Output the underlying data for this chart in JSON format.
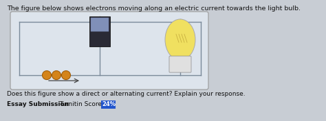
{
  "background_color": "#c8cdd4",
  "title_text": "The figure below shows electrons moving along an electric current towards the light bulb.",
  "title_fontsize": 6.8,
  "title_color": "#111111",
  "question_text": "Does this figure show a direct or alternating current? Explain your response.",
  "question_fontsize": 6.5,
  "essay_label": "Essay Submission",
  "turnitin_label": "Turnitin Score:",
  "score_text": "24%",
  "score_bg": "#2255cc",
  "score_color": "#ffffff",
  "label_fontsize": 6.5,
  "circuit_bg": "#dde4ec",
  "circuit_edge": "#999999",
  "wire_color": "#7a8a9a",
  "electron_color": "#d4841a",
  "electron_outline": "#a05e0a",
  "battery_dark": "#2a2a35",
  "battery_mid": "#8090b8",
  "bulb_yellow": "#f0e060",
  "bulb_outline": "#aaaaaa",
  "bulb_base": "#c8c8c8",
  "bulb_filament": "#c8b040"
}
